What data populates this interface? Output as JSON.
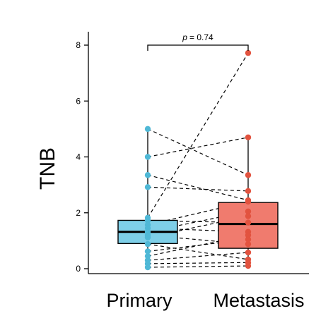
{
  "chart_data": {
    "type": "box",
    "title": "",
    "xlabel": "",
    "ylabel": "TNB",
    "categories": [
      "Primary",
      "Metastasis"
    ],
    "ylim": [
      -0.2,
      8.5
    ],
    "yticks": [
      "0",
      "2",
      "4",
      "6",
      "8"
    ],
    "grid": false,
    "annotation": {
      "p_symbol": "p",
      "p_text": "= 0.74"
    },
    "colors": {
      "Primary_box": "#7ecfe8",
      "Primary_points": "#4fb8d6",
      "Metastasis_box": "#f07b6e",
      "Metastasis_points": "#e2533f"
    },
    "boxes": [
      {
        "category": "Primary",
        "q1": 0.9,
        "median": 1.32,
        "q3": 1.73,
        "whisker_low": 0.05,
        "whisker_high": 5.0
      },
      {
        "category": "Metastasis",
        "q1": 0.73,
        "median": 1.6,
        "q3": 2.37,
        "whisker_low": 0.1,
        "whisker_high": 4.7
      }
    ],
    "paired_values": [
      [
        5.0,
        3.35
      ],
      [
        4.0,
        4.7
      ],
      [
        3.35,
        2.45
      ],
      [
        2.92,
        2.78
      ],
      [
        1.82,
        7.72
      ],
      [
        1.72,
        1.65
      ],
      [
        1.57,
        2.4
      ],
      [
        1.45,
        1.32
      ],
      [
        1.32,
        2.05
      ],
      [
        1.2,
        0.88
      ],
      [
        1.12,
        1.88
      ],
      [
        0.88,
        0.33
      ],
      [
        0.62,
        1.05
      ],
      [
        0.45,
        1.2
      ],
      [
        0.3,
        0.58
      ],
      [
        0.18,
        0.22
      ],
      [
        0.05,
        0.1
      ]
    ]
  }
}
